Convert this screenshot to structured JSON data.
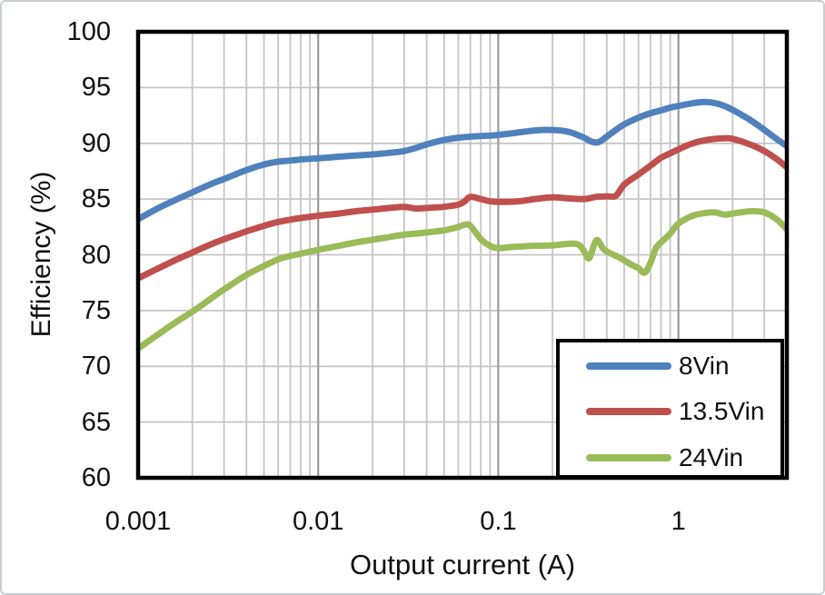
{
  "chart_data": {
    "type": "line",
    "x_scale": "log",
    "xlim": [
      0.001,
      4
    ],
    "ylim": [
      60,
      100
    ],
    "xlabel": "Output current (A)",
    "ylabel": "Efficiency (%)",
    "grid": "on",
    "legend_position": "inside-bottom-right",
    "x_ticks": [
      {
        "value": 0.001,
        "label": "0.001"
      },
      {
        "value": 0.01,
        "label": "0.01"
      },
      {
        "value": 0.1,
        "label": "0.1"
      },
      {
        "value": 1,
        "label": "1"
      }
    ],
    "y_ticks": [
      {
        "value": 100,
        "label": "100"
      },
      {
        "value": 95,
        "label": "95"
      },
      {
        "value": 90,
        "label": "90"
      },
      {
        "value": 85,
        "label": "85"
      },
      {
        "value": 80,
        "label": "80"
      },
      {
        "value": 75,
        "label": "75"
      },
      {
        "value": 70,
        "label": "70"
      },
      {
        "value": 65,
        "label": "65"
      },
      {
        "value": 60,
        "label": "60"
      }
    ],
    "y_gridline_step": 5,
    "colors": {
      "grid_minor": "#c6c6c6",
      "grid_major": "#9b9b9b",
      "plot_border": "#000000",
      "text": "#111111"
    },
    "series": [
      {
        "name": "8Vin",
        "color": "#4F81BD",
        "points": [
          [
            0.001,
            83.2
          ],
          [
            0.0013,
            84.2
          ],
          [
            0.0016,
            84.9
          ],
          [
            0.002,
            85.6
          ],
          [
            0.0025,
            86.3
          ],
          [
            0.003,
            86.8
          ],
          [
            0.004,
            87.6
          ],
          [
            0.005,
            88.1
          ],
          [
            0.006,
            88.35
          ],
          [
            0.007,
            88.45
          ],
          [
            0.008,
            88.55
          ],
          [
            0.01,
            88.65
          ],
          [
            0.013,
            88.8
          ],
          [
            0.016,
            88.9
          ],
          [
            0.02,
            89.0
          ],
          [
            0.025,
            89.15
          ],
          [
            0.03,
            89.3
          ],
          [
            0.035,
            89.6
          ],
          [
            0.04,
            89.9
          ],
          [
            0.05,
            90.3
          ],
          [
            0.06,
            90.5
          ],
          [
            0.07,
            90.6
          ],
          [
            0.08,
            90.65
          ],
          [
            0.09,
            90.7
          ],
          [
            0.1,
            90.75
          ],
          [
            0.12,
            90.9
          ],
          [
            0.15,
            91.1
          ],
          [
            0.18,
            91.2
          ],
          [
            0.22,
            91.15
          ],
          [
            0.25,
            91.0
          ],
          [
            0.28,
            90.7
          ],
          [
            0.3,
            90.5
          ],
          [
            0.33,
            90.15
          ],
          [
            0.36,
            90.1
          ],
          [
            0.4,
            90.6
          ],
          [
            0.45,
            91.2
          ],
          [
            0.5,
            91.7
          ],
          [
            0.6,
            92.3
          ],
          [
            0.7,
            92.7
          ],
          [
            0.8,
            92.95
          ],
          [
            0.9,
            93.2
          ],
          [
            1.0,
            93.35
          ],
          [
            1.2,
            93.6
          ],
          [
            1.4,
            93.7
          ],
          [
            1.6,
            93.6
          ],
          [
            1.8,
            93.35
          ],
          [
            2.0,
            93.0
          ],
          [
            2.5,
            92.1
          ],
          [
            3.0,
            91.2
          ],
          [
            3.5,
            90.4
          ],
          [
            4.0,
            89.75
          ]
        ]
      },
      {
        "name": "13.5Vin",
        "color": "#C0504D",
        "points": [
          [
            0.001,
            77.9
          ],
          [
            0.0013,
            78.8
          ],
          [
            0.0016,
            79.5
          ],
          [
            0.002,
            80.2
          ],
          [
            0.0025,
            80.9
          ],
          [
            0.003,
            81.4
          ],
          [
            0.004,
            82.1
          ],
          [
            0.005,
            82.6
          ],
          [
            0.006,
            82.95
          ],
          [
            0.007,
            83.15
          ],
          [
            0.008,
            83.3
          ],
          [
            0.01,
            83.5
          ],
          [
            0.013,
            83.7
          ],
          [
            0.016,
            83.9
          ],
          [
            0.02,
            84.05
          ],
          [
            0.025,
            84.2
          ],
          [
            0.03,
            84.3
          ],
          [
            0.035,
            84.15
          ],
          [
            0.04,
            84.2
          ],
          [
            0.05,
            84.3
          ],
          [
            0.06,
            84.5
          ],
          [
            0.065,
            84.8
          ],
          [
            0.07,
            85.2
          ],
          [
            0.08,
            85.0
          ],
          [
            0.09,
            84.8
          ],
          [
            0.1,
            84.75
          ],
          [
            0.13,
            84.8
          ],
          [
            0.16,
            85.0
          ],
          [
            0.2,
            85.15
          ],
          [
            0.25,
            85.05
          ],
          [
            0.3,
            85.0
          ],
          [
            0.35,
            85.2
          ],
          [
            0.4,
            85.25
          ],
          [
            0.45,
            85.3
          ],
          [
            0.5,
            86.3
          ],
          [
            0.6,
            87.2
          ],
          [
            0.7,
            88.0
          ],
          [
            0.8,
            88.7
          ],
          [
            0.9,
            89.1
          ],
          [
            1.0,
            89.45
          ],
          [
            1.2,
            90.0
          ],
          [
            1.5,
            90.35
          ],
          [
            1.8,
            90.45
          ],
          [
            2.0,
            90.4
          ],
          [
            2.5,
            89.9
          ],
          [
            3.0,
            89.3
          ],
          [
            3.5,
            88.6
          ],
          [
            4.0,
            87.85
          ]
        ]
      },
      {
        "name": "24Vin",
        "color": "#9BBB59",
        "points": [
          [
            0.001,
            71.6
          ],
          [
            0.0013,
            72.9
          ],
          [
            0.0016,
            73.9
          ],
          [
            0.002,
            74.9
          ],
          [
            0.0025,
            76.0
          ],
          [
            0.003,
            76.9
          ],
          [
            0.004,
            78.2
          ],
          [
            0.005,
            79.0
          ],
          [
            0.006,
            79.6
          ],
          [
            0.007,
            79.9
          ],
          [
            0.008,
            80.1
          ],
          [
            0.01,
            80.45
          ],
          [
            0.013,
            80.8
          ],
          [
            0.016,
            81.1
          ],
          [
            0.02,
            81.35
          ],
          [
            0.025,
            81.6
          ],
          [
            0.03,
            81.8
          ],
          [
            0.04,
            82.0
          ],
          [
            0.05,
            82.2
          ],
          [
            0.06,
            82.5
          ],
          [
            0.065,
            82.7
          ],
          [
            0.07,
            82.6
          ],
          [
            0.08,
            81.4
          ],
          [
            0.09,
            80.8
          ],
          [
            0.1,
            80.6
          ],
          [
            0.12,
            80.7
          ],
          [
            0.15,
            80.8
          ],
          [
            0.2,
            80.85
          ],
          [
            0.25,
            81.0
          ],
          [
            0.28,
            80.9
          ],
          [
            0.3,
            80.3
          ],
          [
            0.32,
            79.7
          ],
          [
            0.35,
            81.3
          ],
          [
            0.38,
            80.6
          ],
          [
            0.4,
            80.3
          ],
          [
            0.45,
            79.9
          ],
          [
            0.5,
            79.5
          ],
          [
            0.55,
            79.1
          ],
          [
            0.6,
            78.8
          ],
          [
            0.65,
            78.4
          ],
          [
            0.7,
            79.3
          ],
          [
            0.75,
            80.6
          ],
          [
            0.8,
            81.1
          ],
          [
            0.9,
            81.9
          ],
          [
            1.0,
            82.8
          ],
          [
            1.2,
            83.5
          ],
          [
            1.4,
            83.75
          ],
          [
            1.6,
            83.8
          ],
          [
            1.8,
            83.6
          ],
          [
            2.0,
            83.7
          ],
          [
            2.5,
            83.9
          ],
          [
            3.0,
            83.8
          ],
          [
            3.5,
            83.2
          ],
          [
            4.0,
            82.3
          ]
        ]
      }
    ]
  }
}
